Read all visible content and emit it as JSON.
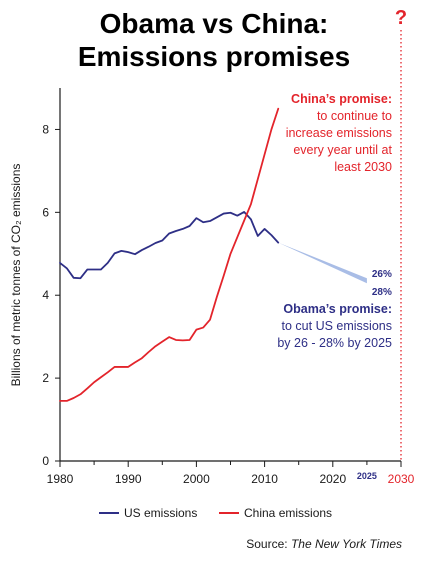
{
  "chart_data": {
    "type": "line",
    "title_lines": [
      "Obama vs China:",
      "Emissions promises"
    ],
    "ylabel": "Billions of metric tonnes of CO₂ emissions",
    "xlim": [
      1980,
      2030
    ],
    "ylim": [
      0,
      9
    ],
    "x_ticks": [
      1980,
      1990,
      2000,
      2010,
      2020,
      2030
    ],
    "y_ticks": [
      0,
      2,
      4,
      6,
      8
    ],
    "extra_x_tick": {
      "value": 2025,
      "label": "2025"
    },
    "question_mark": "?",
    "colors": {
      "us": "#2e2f86",
      "china": "#e3242b",
      "band": "#a9bde6",
      "marker_2030": "#e3242b",
      "axis": "#1a1a1a"
    },
    "series": [
      {
        "name": "US emissions",
        "key": "us",
        "x": [
          1980,
          1981,
          1982,
          1983,
          1984,
          1985,
          1986,
          1987,
          1988,
          1989,
          1990,
          1991,
          1992,
          1993,
          1994,
          1995,
          1996,
          1997,
          1998,
          1999,
          2000,
          2001,
          2002,
          2003,
          2004,
          2005,
          2006,
          2007,
          2008,
          2009,
          2010,
          2011,
          2012
        ],
        "y": [
          4.78,
          4.65,
          4.42,
          4.41,
          4.62,
          4.62,
          4.62,
          4.78,
          5.01,
          5.07,
          5.04,
          4.99,
          5.09,
          5.17,
          5.26,
          5.32,
          5.49,
          5.55,
          5.6,
          5.67,
          5.86,
          5.76,
          5.79,
          5.88,
          5.97,
          5.99,
          5.92,
          6.01,
          5.83,
          5.43,
          5.6,
          5.45,
          5.27
        ]
      },
      {
        "name": "China emissions",
        "key": "china",
        "x": [
          1980,
          1981,
          1982,
          1983,
          1984,
          1985,
          1986,
          1987,
          1988,
          1989,
          1990,
          1991,
          1992,
          1993,
          1994,
          1995,
          1996,
          1997,
          1998,
          1999,
          2000,
          2001,
          2002,
          2003,
          2004,
          2005,
          2006,
          2007,
          2008,
          2009,
          2010,
          2011,
          2012
        ],
        "y": [
          1.45,
          1.45,
          1.52,
          1.61,
          1.75,
          1.9,
          2.02,
          2.14,
          2.27,
          2.27,
          2.27,
          2.38,
          2.48,
          2.63,
          2.77,
          2.88,
          2.99,
          2.92,
          2.91,
          2.92,
          3.17,
          3.22,
          3.41,
          3.96,
          4.47,
          5.0,
          5.4,
          5.8,
          6.2,
          6.8,
          7.4,
          8.0,
          8.5
        ]
      }
    ],
    "projection": {
      "series": "us",
      "start": {
        "x": 2012,
        "y": 5.27
      },
      "end_x": 2025,
      "end_upper": 4.41,
      "end_lower": 4.29,
      "labels": [
        "26%",
        "28%"
      ]
    },
    "annotations": {
      "china": {
        "heading": "China’s promise:",
        "lines": [
          "to continue to",
          "increase emissions",
          "every year until at",
          "least 2030"
        ]
      },
      "obama": {
        "heading": "Obama’s promise:",
        "lines": [
          "to cut US emissions",
          "by 26 - 28% by 2025"
        ]
      }
    },
    "legend": {
      "placement": "bottom",
      "entries": [
        "US emissions",
        "China emissions"
      ]
    },
    "source": {
      "prefix": "Source: ",
      "name": "The New York Times"
    },
    "grid": false
  }
}
